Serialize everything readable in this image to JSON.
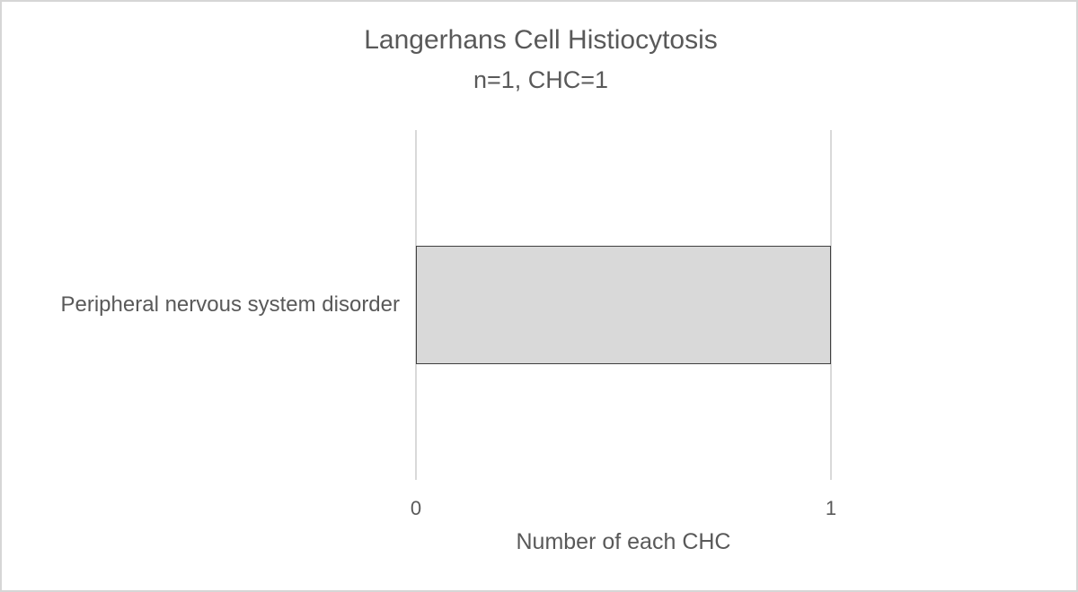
{
  "window": {
    "background_color": "#ffffff",
    "border_color": "#d6d6d6"
  },
  "chart_data": {
    "type": "bar",
    "orientation": "horizontal",
    "title": "Langerhans Cell Histiocytosis",
    "subtitle": "n=1, CHC=1",
    "categories": [
      "Peripheral nervous system disorder"
    ],
    "values": [
      1
    ],
    "xlabel": "Number of each CHC",
    "ylabel": "",
    "xlim": [
      0,
      1
    ],
    "x_ticks": [
      "0",
      "1"
    ],
    "grid": "vertical major gridlines only",
    "legend": "none",
    "colors": {
      "bar_fill": "#d9d9d9",
      "bar_border": "#3f3f3f",
      "gridline": "#d9d9d9",
      "text": "#595959"
    },
    "layout": {
      "bar_band_fraction": 0.34
    }
  }
}
